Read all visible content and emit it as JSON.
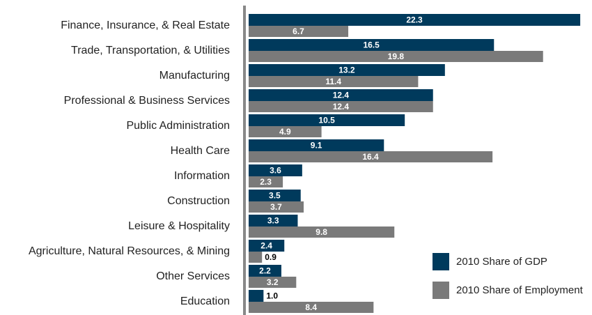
{
  "chart_data": {
    "type": "bar",
    "orientation": "horizontal",
    "categories": [
      "Finance, Insurance, & Real Estate",
      "Trade, Transportation, & Utilities",
      "Manufacturing",
      "Professional & Business Services",
      "Public Administration",
      "Health Care",
      "Information",
      "Construction",
      "Leisure & Hospitality",
      "Agriculture, Natural Resources, & Mining",
      "Other Services",
      "Education"
    ],
    "series": [
      {
        "name": "2010 Share of GDP",
        "color": "#003a5c",
        "values": [
          22.3,
          16.5,
          13.2,
          12.4,
          10.5,
          9.1,
          3.6,
          3.5,
          3.3,
          2.4,
          2.2,
          1.0
        ],
        "value_labels": [
          "22.3",
          "16.5",
          "13.2",
          "12.4",
          "10.5",
          "9.1",
          "3.6",
          "3.5",
          "3.3",
          "2.4",
          "2.2",
          "1.0"
        ]
      },
      {
        "name": "2010 Share of Employment",
        "color": "#7a7a7a",
        "values": [
          6.7,
          19.8,
          11.4,
          12.4,
          4.9,
          16.4,
          2.3,
          3.7,
          9.8,
          0.9,
          3.2,
          8.4
        ],
        "value_labels": [
          "6.7",
          "19.8",
          "11.4",
          "12.4",
          "4.9",
          "16.4",
          "2.3",
          "3.7",
          "9.8",
          "0.9",
          "3.2",
          "8.4"
        ]
      }
    ]
  }
}
